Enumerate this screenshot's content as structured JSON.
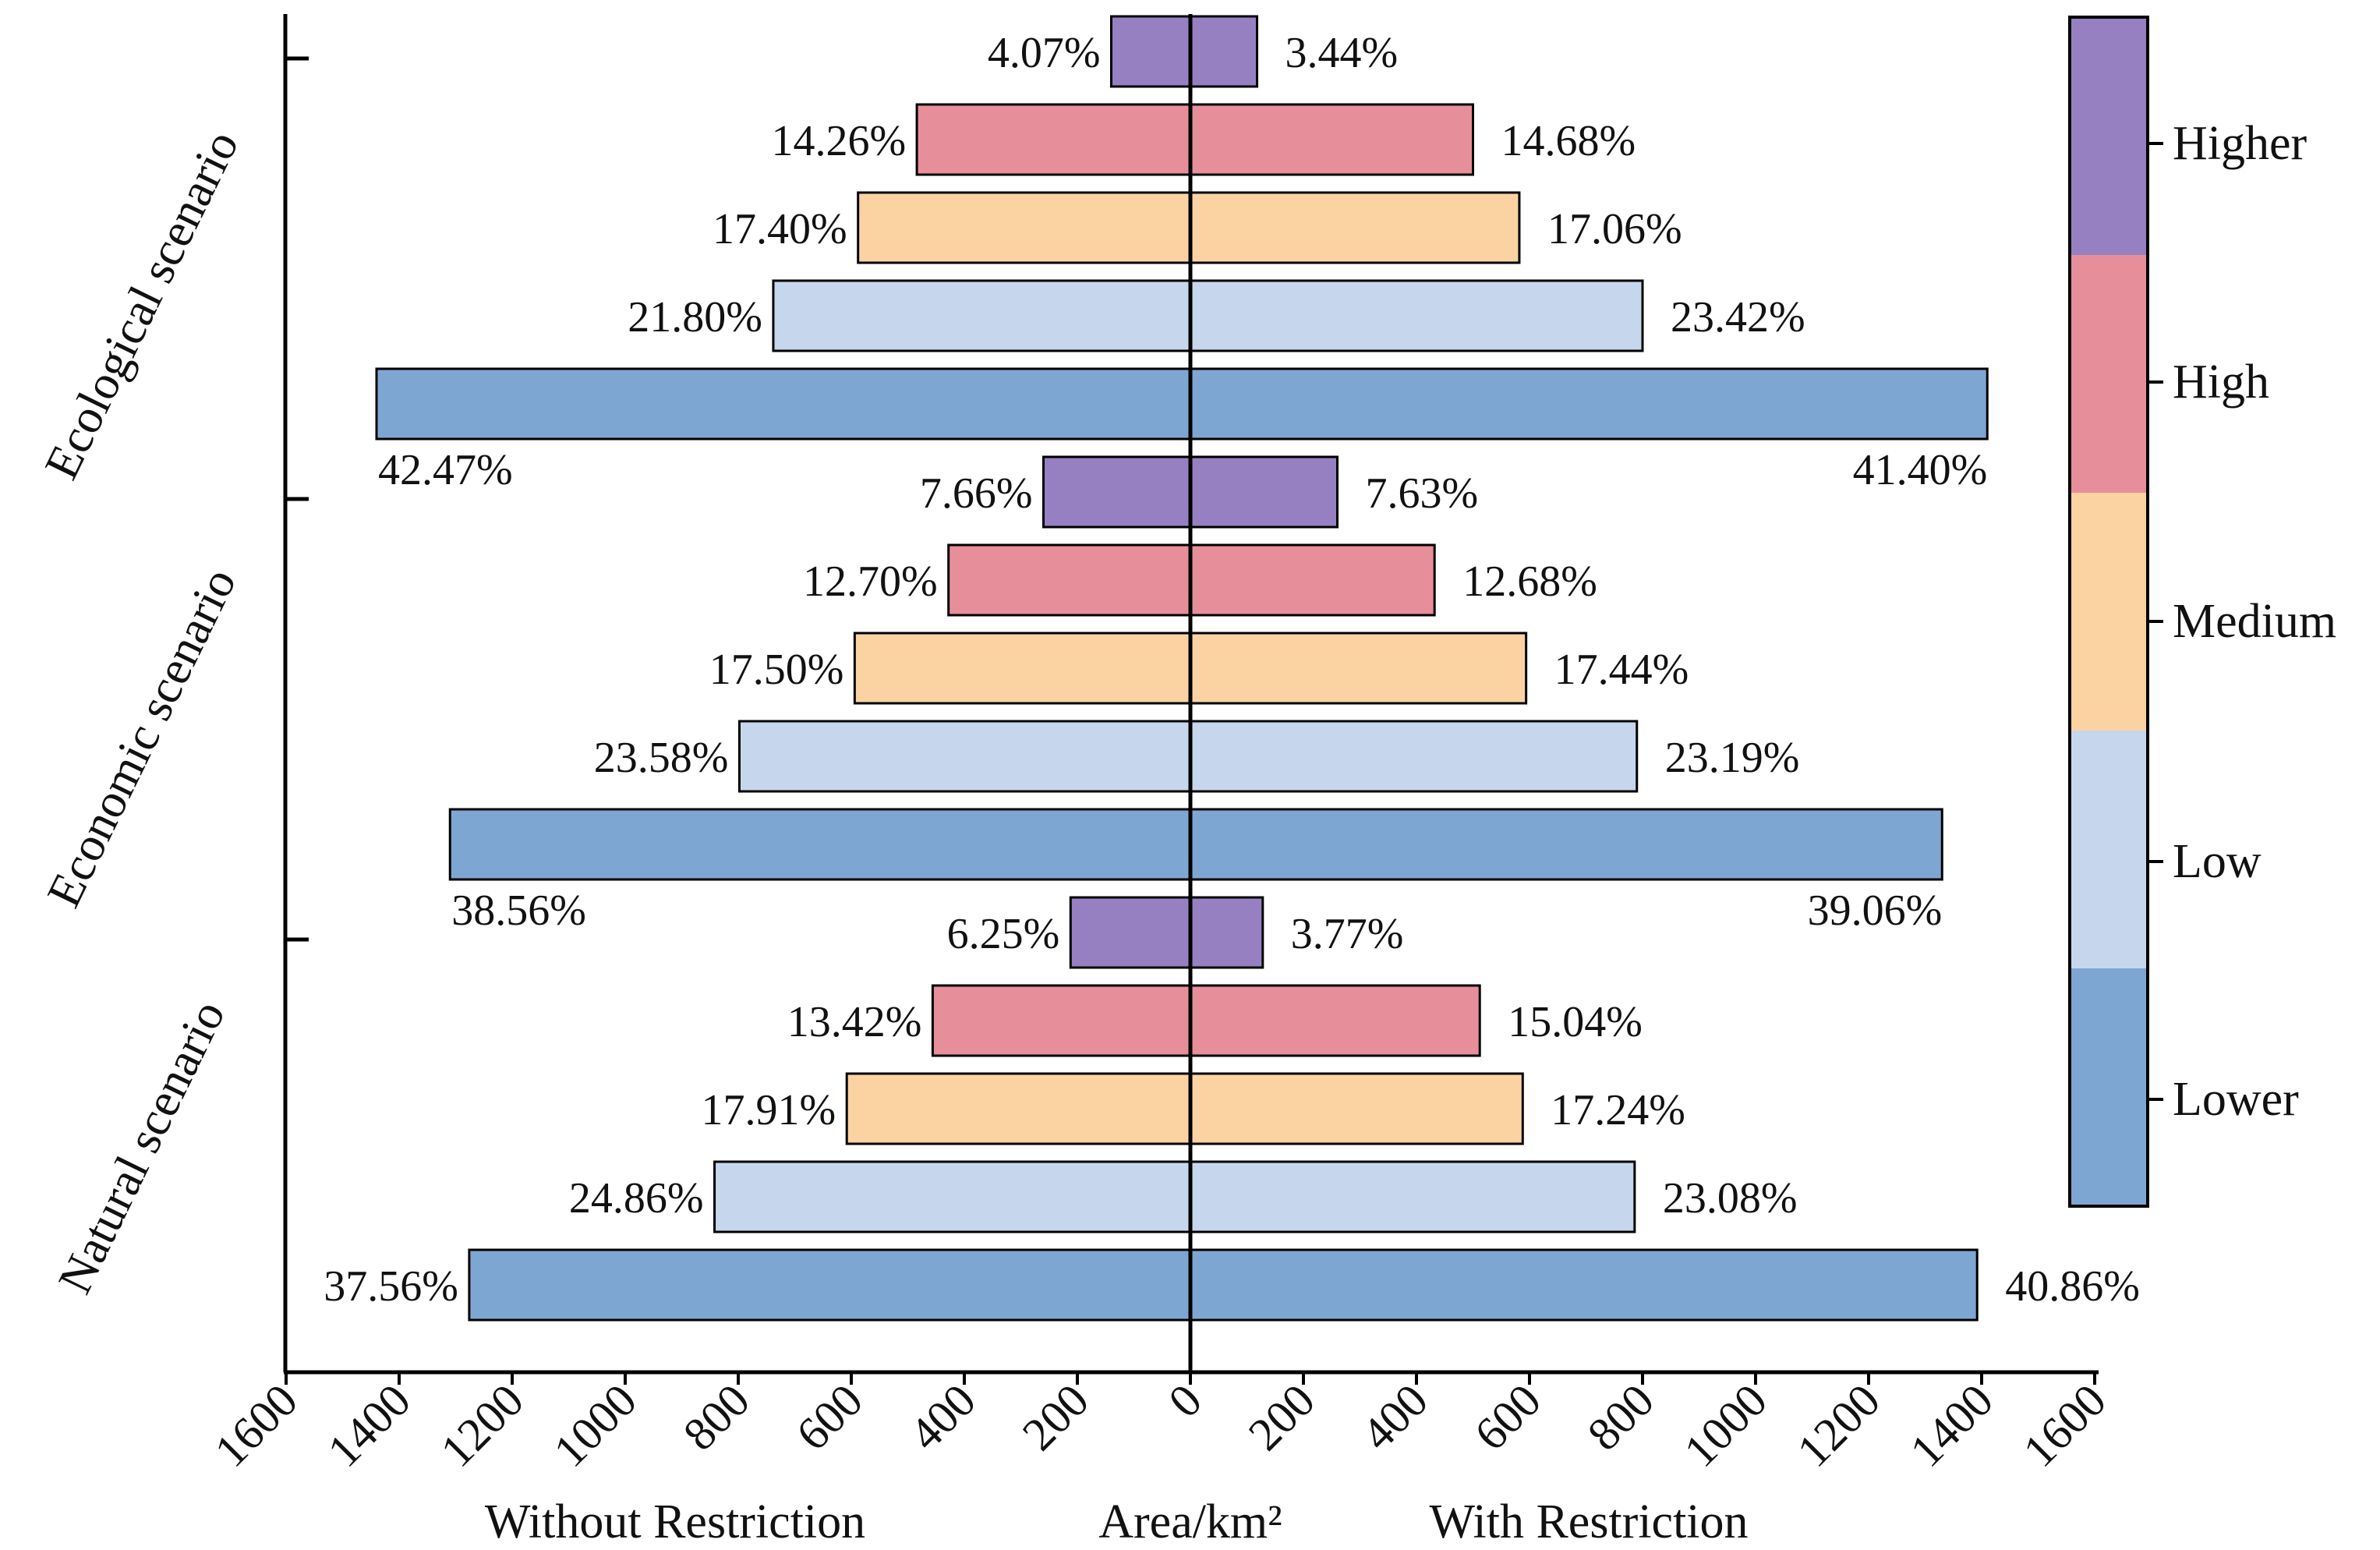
{
  "chart_data": {
    "type": "bar",
    "orientation": "horizontal-diverging",
    "title": "",
    "xlabel": "Area/km²",
    "left_label": "Without Restriction",
    "right_label": "With Restriction",
    "xlim": [
      -1600,
      1600
    ],
    "xticks": [
      -1600,
      -1400,
      -1200,
      -1000,
      -800,
      -600,
      -400,
      -200,
      0,
      200,
      400,
      600,
      800,
      1000,
      1200,
      1400,
      1600
    ],
    "xtick_labels": [
      "1600",
      "1400",
      "1200",
      "1000",
      "800",
      "600",
      "400",
      "200",
      "0",
      "200",
      "400",
      "600",
      "800",
      "1000",
      "1200",
      "1400",
      "1600"
    ],
    "levels": [
      "Lower",
      "Low",
      "Medium",
      "High",
      "Higher"
    ],
    "colors": {
      "Lower": "#7ea6d2",
      "Low": "#c6d6ec",
      "Medium": "#fbd3a3",
      "High": "#e78e9b",
      "Higher": "#9680c2"
    },
    "scenarios": [
      {
        "name": "Ecological scenario",
        "bars": [
          {
            "level": "Higher",
            "without": 140,
            "with": 118,
            "without_label": "4.07%",
            "with_label": "3.44%"
          },
          {
            "level": "High",
            "without": 484,
            "with": 500,
            "without_label": "14.26%",
            "with_label": "14.68%"
          },
          {
            "level": "Medium",
            "without": 588,
            "with": 582,
            "without_label": "17.40%",
            "with_label": "17.06%"
          },
          {
            "level": "Low",
            "without": 738,
            "with": 800,
            "without_label": "21.80%",
            "with_label": "23.42%"
          },
          {
            "level": "Lower",
            "without": 1440,
            "with": 1410,
            "without_label": "42.47%",
            "with_label": "41.40%"
          }
        ]
      },
      {
        "name": "Economic scenario",
        "bars": [
          {
            "level": "Higher",
            "without": 260,
            "with": 260,
            "without_label": "7.66%",
            "with_label": "7.63%"
          },
          {
            "level": "High",
            "without": 428,
            "with": 432,
            "without_label": "12.70%",
            "with_label": "12.68%"
          },
          {
            "level": "Medium",
            "without": 594,
            "with": 594,
            "without_label": "17.50%",
            "with_label": "17.44%"
          },
          {
            "level": "Low",
            "without": 798,
            "with": 790,
            "without_label": "23.58%",
            "with_label": "23.19%"
          },
          {
            "level": "Lower",
            "without": 1310,
            "with": 1330,
            "without_label": "38.56%",
            "with_label": "39.06%"
          }
        ]
      },
      {
        "name": "Natural scenario",
        "bars": [
          {
            "level": "Higher",
            "without": 212,
            "with": 128,
            "without_label": "6.25%",
            "with_label": "3.77%"
          },
          {
            "level": "High",
            "without": 456,
            "with": 512,
            "without_label": "13.42%",
            "with_label": "15.04%"
          },
          {
            "level": "Medium",
            "without": 608,
            "with": 588,
            "without_label": "17.91%",
            "with_label": "17.24%"
          },
          {
            "level": "Low",
            "without": 842,
            "with": 786,
            "without_label": "24.86%",
            "with_label": "23.08%"
          },
          {
            "level": "Lower",
            "without": 1276,
            "with": 1392,
            "without_label": "37.56%",
            "with_label": "40.86%"
          }
        ]
      }
    ],
    "legend": {
      "placement": "right",
      "entries": [
        "Higher",
        "High",
        "Medium",
        "Low",
        "Lower"
      ]
    },
    "grid": false
  }
}
